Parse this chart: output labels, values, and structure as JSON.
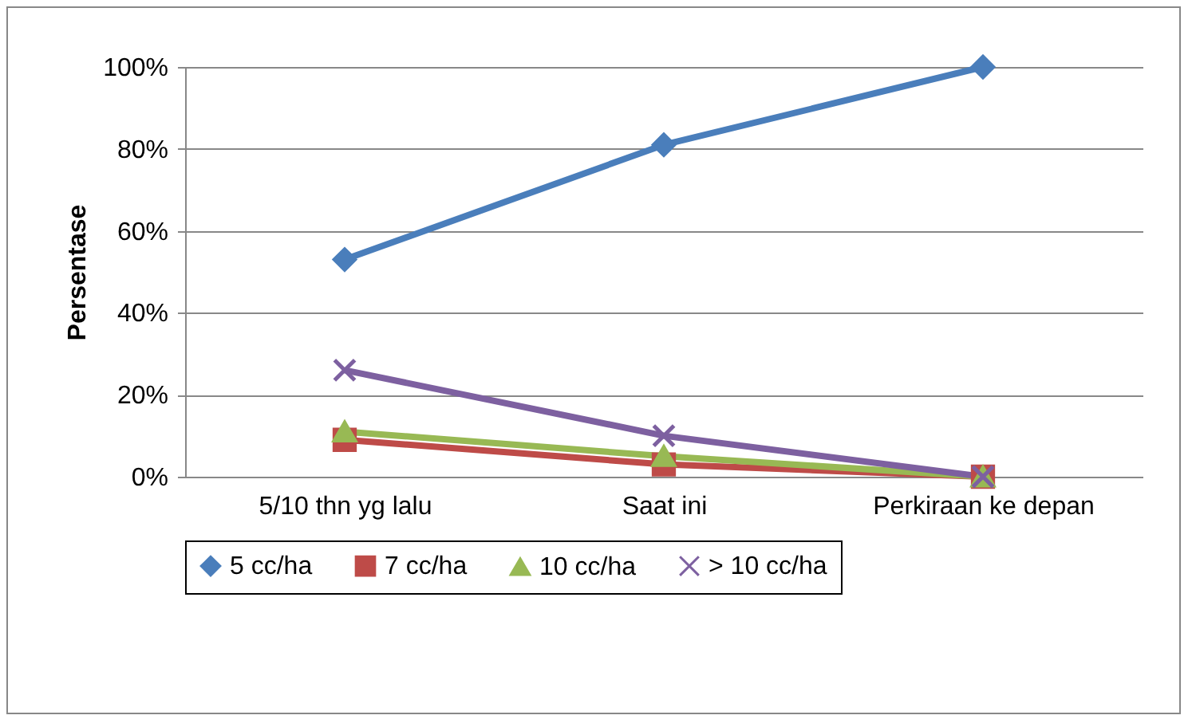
{
  "chart_data": {
    "type": "line",
    "ylabel": "Persentase",
    "categories": [
      "5/10 thn yg lalu",
      "Saat ini",
      "Perkiraan ke depan"
    ],
    "series": [
      {
        "name": "5 cc/ha",
        "color": "#4a7ebb",
        "marker": "diamond",
        "values": [
          53,
          81,
          100
        ]
      },
      {
        "name": "7 cc/ha",
        "color": "#be4b48",
        "marker": "square",
        "values": [
          9,
          3,
          0
        ]
      },
      {
        "name": "10 cc/ha",
        "color": "#98b954",
        "marker": "triangle",
        "values": [
          11,
          5,
          0
        ]
      },
      {
        "name": "> 10 cc/ha",
        "color": "#7d60a0",
        "marker": "cross",
        "values": [
          26,
          10,
          0
        ]
      }
    ],
    "ylim": [
      0,
      100
    ],
    "yticks": [
      {
        "value": 0,
        "label": "0%"
      },
      {
        "value": 20,
        "label": "20%"
      },
      {
        "value": 40,
        "label": "40%"
      },
      {
        "value": 60,
        "label": "60%"
      },
      {
        "value": 80,
        "label": "80%"
      },
      {
        "value": 100,
        "label": "100%"
      }
    ],
    "grid": "y",
    "legend": "bottom",
    "line_style": "solid"
  }
}
